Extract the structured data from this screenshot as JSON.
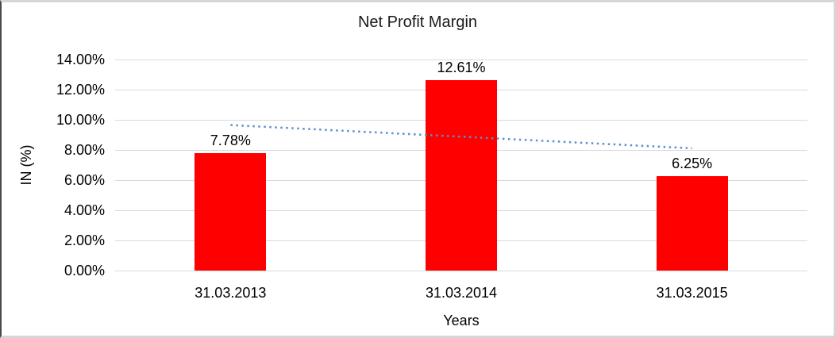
{
  "chart_data": {
    "type": "bar",
    "title": "Net Profit Margin",
    "xlabel": "Years",
    "ylabel": "IN (%)",
    "categories": [
      "31.03.2013",
      "31.03.2014",
      "31.03.2015"
    ],
    "values": [
      7.78,
      12.61,
      6.25
    ],
    "data_labels": [
      "7.78%",
      "12.61%",
      "6.25%"
    ],
    "y_ticks": [
      "0.00%",
      "2.00%",
      "4.00%",
      "6.00%",
      "8.00%",
      "10.00%",
      "12.00%",
      "14.00%"
    ],
    "ylim": [
      0,
      14
    ],
    "y_tick_step": 2,
    "grid": true,
    "legend_position": "none",
    "bar_color": "#ff0000",
    "gridline_color": "#d9d9d9",
    "text_color": "#000000",
    "trendline": {
      "type": "linear",
      "style": "dotted",
      "color": "#5b8fd0",
      "start_value": 9.65,
      "end_value": 8.11
    }
  }
}
